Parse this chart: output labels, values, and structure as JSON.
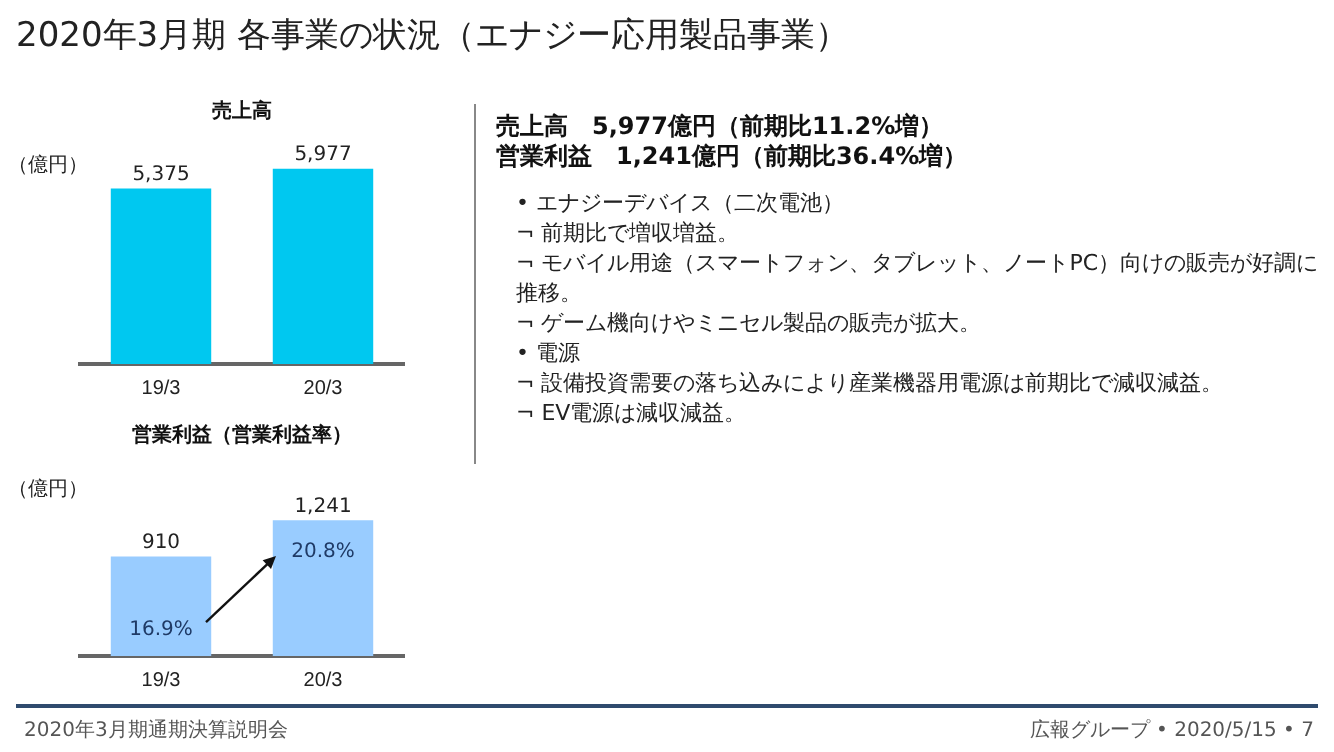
{
  "chart_data": [
    {
      "type": "other",
      "title": "2020年3月期 各事業の状況（エナジー応用製品事業）",
      "annotations": [
        "2020年3月期通期決算説明会",
        "広報グループ • 2020/5/15 • 7"
      ]
    },
    {
      "type": "bar",
      "title": "売上高",
      "ylabel": "（億円）",
      "categories": [
        "19/3",
        "20/3"
      ],
      "values": [
        5375,
        5977
      ],
      "color": "#00c8f0",
      "value_labels": [
        "5,375",
        "5,977"
      ],
      "grid": false,
      "legend": false
    },
    {
      "type": "bar",
      "title": "営業利益（営業利益率）",
      "ylabel": "（億円）",
      "categories": [
        "19/3",
        "20/3"
      ],
      "values": [
        910,
        1241
      ],
      "color": "#99ccff",
      "value_labels": [
        "910",
        "1,241"
      ],
      "grid": false,
      "legend": false,
      "annotations": [
        "16.9%",
        "20.8%"
      ]
    },
    {
      "type": "other",
      "title": "売上高　5,977億円（前期比11.2%増）",
      "subtitle": "営業利益　1,241億円（前期比36.4%増）",
      "annotations": [
        "• エナジーデバイス（二次電池）",
        "¬ 前期比で増収増益。",
        "¬ モバイル用途（スマートフォン、タブレット、ノートPC）向けの販売が好調に推移。",
        "¬ ゲーム機向けやミニセル製品の販売が拡大。",
        "• 電源",
        "¬ 設備投資需要の落ち込みにより産業機器用電源は前期比で減収減益。",
        "¬ EV電源は減収減益。"
      ]
    }
  ]
}
